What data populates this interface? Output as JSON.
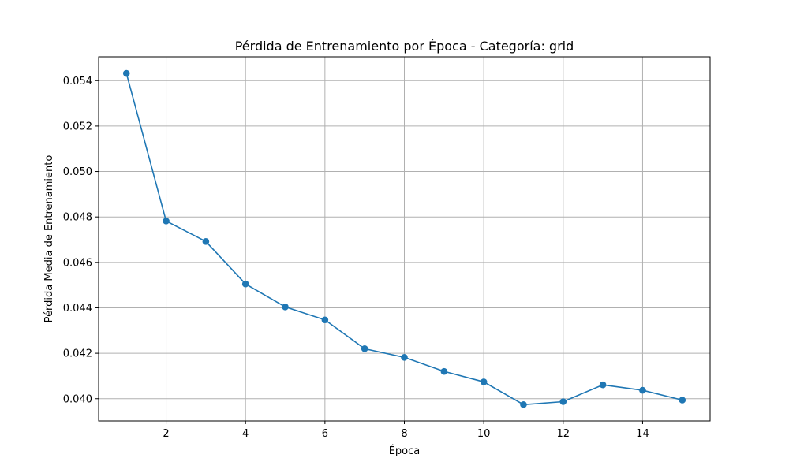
{
  "chart_data": {
    "type": "line",
    "title": "Pérdida de Entrenamiento por Época - Categoría: grid",
    "xlabel": "Época",
    "ylabel": "Pérdida Media de Entrenamiento",
    "x": [
      1,
      2,
      3,
      4,
      5,
      6,
      7,
      8,
      9,
      10,
      11,
      12,
      13,
      14,
      15
    ],
    "series": [
      {
        "values": [
          0.05432,
          0.04782,
          0.04692,
          0.04505,
          0.04404,
          0.04347,
          0.0422,
          0.04182,
          0.0412,
          0.04074,
          0.03974,
          0.03987,
          0.04061,
          0.04037,
          0.03994
        ],
        "color": "#1f77b4",
        "marker": "circle"
      }
    ],
    "xticks": [
      2,
      4,
      6,
      8,
      10,
      12,
      14
    ],
    "yticks": [
      0.04,
      0.042,
      0.044,
      0.046,
      0.048,
      0.05,
      0.052,
      0.054
    ],
    "ytick_labels": [
      "0.040",
      "0.042",
      "0.044",
      "0.046",
      "0.048",
      "0.050",
      "0.052",
      "0.054"
    ],
    "xlim": [
      0.3,
      15.7
    ],
    "ylim": [
      0.03902,
      0.05505
    ],
    "grid": true
  }
}
